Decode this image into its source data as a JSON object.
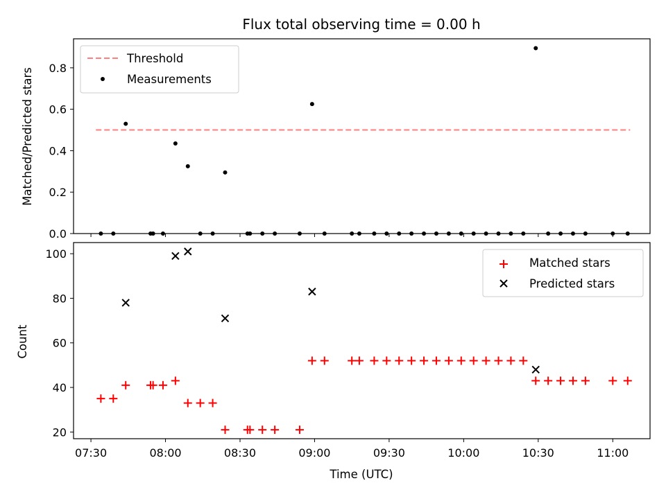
{
  "chart_data": [
    {
      "type": "scatter",
      "title": "Flux total observing time = 0.00 h",
      "ylabel": "Matched/Predicted stars",
      "xlabel": "",
      "xlim": [
        "07:23",
        "11:15"
      ],
      "ylim": [
        0,
        0.94
      ],
      "yticks": [
        "0.0",
        "0.2",
        "0.4",
        "0.6",
        "0.8"
      ],
      "legend_position": "upper-left",
      "legend": [
        "Threshold",
        "Measurements"
      ],
      "threshold": {
        "name": "Threshold",
        "value": 0.5,
        "x_start": "07:32",
        "x_end": "11:07",
        "color": "#ff7f7f"
      },
      "series": [
        {
          "name": "Measurements",
          "color": "#000000",
          "points": [
            [
              "07:34",
              0
            ],
            [
              "07:39",
              0
            ],
            [
              "07:44",
              0.53
            ],
            [
              "07:54",
              0
            ],
            [
              "07:55",
              0
            ],
            [
              "07:59",
              0
            ],
            [
              "08:04",
              0.435
            ],
            [
              "08:09",
              0.325
            ],
            [
              "08:14",
              0
            ],
            [
              "08:19",
              0
            ],
            [
              "08:24",
              0.295
            ],
            [
              "08:33",
              0
            ],
            [
              "08:34",
              0
            ],
            [
              "08:39",
              0
            ],
            [
              "08:44",
              0
            ],
            [
              "08:54",
              0
            ],
            [
              "08:59",
              0.625
            ],
            [
              "09:04",
              0
            ],
            [
              "09:15",
              0
            ],
            [
              "09:18",
              0
            ],
            [
              "09:24",
              0
            ],
            [
              "09:29",
              0
            ],
            [
              "09:34",
              0
            ],
            [
              "09:39",
              0
            ],
            [
              "09:44",
              0
            ],
            [
              "09:49",
              0
            ],
            [
              "09:54",
              0
            ],
            [
              "09:59",
              0
            ],
            [
              "10:04",
              0
            ],
            [
              "10:09",
              0
            ],
            [
              "10:14",
              0
            ],
            [
              "10:19",
              0
            ],
            [
              "10:24",
              0
            ],
            [
              "10:29",
              0.895
            ],
            [
              "10:34",
              0
            ],
            [
              "10:39",
              0
            ],
            [
              "10:44",
              0
            ],
            [
              "10:49",
              0
            ],
            [
              "11:00",
              0
            ],
            [
              "11:06",
              0
            ]
          ]
        }
      ]
    },
    {
      "type": "scatter",
      "title": "",
      "ylabel": "Count",
      "xlabel": "Time (UTC)",
      "xlim": [
        "07:23",
        "11:15"
      ],
      "ylim": [
        17,
        105
      ],
      "yticks": [
        "20",
        "40",
        "60",
        "80",
        "100"
      ],
      "xticks": [
        "07:30",
        "08:00",
        "08:30",
        "09:00",
        "09:30",
        "10:00",
        "10:30",
        "11:00"
      ],
      "legend_position": "upper-right",
      "legend": [
        "Matched stars",
        "Predicted stars"
      ],
      "series": [
        {
          "name": "Matched stars",
          "color": "#ff0000",
          "marker": "plus",
          "points": [
            [
              "07:34",
              35
            ],
            [
              "07:39",
              35
            ],
            [
              "07:44",
              41
            ],
            [
              "07:54",
              41
            ],
            [
              "07:55",
              41
            ],
            [
              "07:59",
              41
            ],
            [
              "08:04",
              43
            ],
            [
              "08:09",
              33
            ],
            [
              "08:14",
              33
            ],
            [
              "08:19",
              33
            ],
            [
              "08:24",
              21
            ],
            [
              "08:33",
              21
            ],
            [
              "08:34",
              21
            ],
            [
              "08:39",
              21
            ],
            [
              "08:44",
              21
            ],
            [
              "08:54",
              21
            ],
            [
              "08:59",
              52
            ],
            [
              "09:04",
              52
            ],
            [
              "09:15",
              52
            ],
            [
              "09:18",
              52
            ],
            [
              "09:24",
              52
            ],
            [
              "09:29",
              52
            ],
            [
              "09:34",
              52
            ],
            [
              "09:39",
              52
            ],
            [
              "09:44",
              52
            ],
            [
              "09:49",
              52
            ],
            [
              "09:54",
              52
            ],
            [
              "09:59",
              52
            ],
            [
              "10:04",
              52
            ],
            [
              "10:09",
              52
            ],
            [
              "10:14",
              52
            ],
            [
              "10:19",
              52
            ],
            [
              "10:24",
              52
            ],
            [
              "10:29",
              43
            ],
            [
              "10:34",
              43
            ],
            [
              "10:39",
              43
            ],
            [
              "10:44",
              43
            ],
            [
              "10:49",
              43
            ],
            [
              "11:00",
              43
            ],
            [
              "11:06",
              43
            ]
          ]
        },
        {
          "name": "Predicted stars",
          "color": "#000000",
          "marker": "x",
          "points": [
            [
              "07:44",
              78
            ],
            [
              "08:04",
              99
            ],
            [
              "08:09",
              101
            ],
            [
              "08:24",
              71
            ],
            [
              "08:59",
              83
            ],
            [
              "10:29",
              48
            ]
          ]
        }
      ]
    }
  ]
}
